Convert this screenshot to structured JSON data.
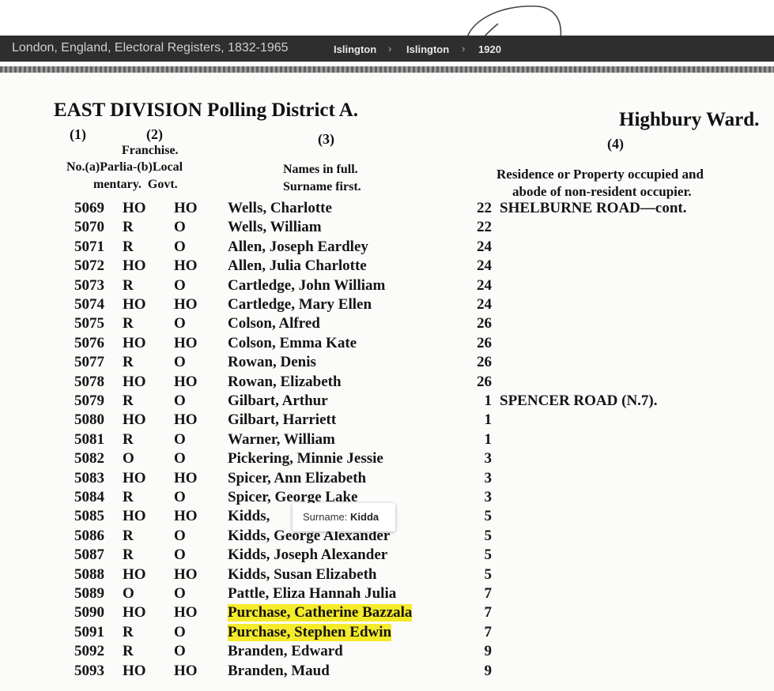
{
  "toolbar": {
    "title": "London, England, Electoral Registers, 1832-1965",
    "breadcrumbs": [
      "Islington",
      "Islington",
      "1920"
    ]
  },
  "document": {
    "heading": "EAST DIVISION Polling District A.",
    "ward": "Highbury Ward.",
    "columns": {
      "col1": "(1)",
      "col2": "(2)",
      "franchise": "Franchise.",
      "sub1": "No.(a)Parlia-(b)Local",
      "sub2": "mentary.  Govt.",
      "col3": "(3)",
      "names1": "Names in full.",
      "names2": "Surname first.",
      "col4": "(4)",
      "res1": "Residence or Property occupied and",
      "res2": "abode of non-resident occupier."
    },
    "rows": [
      [
        "5069",
        "HO",
        "HO",
        "Wells, Charlotte",
        "22",
        "SHELBURNE ROAD—cont."
      ],
      [
        "5070",
        "R",
        "O",
        "Wells, William",
        "22"
      ],
      [
        "5071",
        "R",
        "O",
        "Allen, Joseph Eardley",
        "24"
      ],
      [
        "5072",
        "HO",
        "HO",
        "Allen, Julia Charlotte",
        "24"
      ],
      [
        "5073",
        "R",
        "O",
        "Cartledge, John William",
        "24"
      ],
      [
        "5074",
        "HO",
        "HO",
        "Cartledge, Mary Ellen",
        "24"
      ],
      [
        "5075",
        "R",
        "O",
        "Colson, Alfred",
        "26"
      ],
      [
        "5076",
        "HO",
        "HO",
        "Colson, Emma Kate",
        "26"
      ],
      [
        "5077",
        "R",
        "O",
        "Rowan, Denis",
        "26"
      ],
      [
        "5078",
        "HO",
        "HO",
        "Rowan, Elizabeth",
        "26"
      ],
      [
        "5079",
        "R",
        "O",
        "Gilbart, Arthur",
        "1",
        "SPENCER ROAD (N.7)."
      ],
      [
        "5080",
        "HO",
        "HO",
        "Gilbart, Harriett",
        "1"
      ],
      [
        "5081",
        "R",
        "O",
        "Warner, William",
        "1"
      ],
      [
        "5082",
        "O",
        "O",
        "Pickering, Minnie Jessie",
        "3"
      ],
      [
        "5083",
        "HO",
        "HO",
        "Spicer, Ann Elizabeth",
        "3"
      ],
      [
        "5084",
        "R",
        "O",
        "Spicer, George Lake",
        "3"
      ],
      [
        "5085",
        "HO",
        "HO",
        "Kidds,",
        "5"
      ],
      [
        "5086",
        "R",
        "O",
        "Kidds, George Alexander",
        "5"
      ],
      [
        "5087",
        "R",
        "O",
        "Kidds, Joseph Alexander",
        "5"
      ],
      [
        "5088",
        "HO",
        "HO",
        "Kidds, Susan Elizabeth",
        "5"
      ],
      [
        "5089",
        "O",
        "O",
        "Pattle, Eliza Hannah Julia",
        "7"
      ],
      [
        "5090",
        "HO",
        "HO",
        "Purchase, Catherine Bazzala",
        "7"
      ],
      [
        "5091",
        "R",
        "O",
        "Purchase, Stephen Edwin",
        "7"
      ],
      [
        "5092",
        "R",
        "O",
        "Branden, Edward",
        "9"
      ],
      [
        "5093",
        "HO",
        "HO",
        "Branden, Maud",
        "9"
      ]
    ]
  },
  "tooltip": {
    "label": "Surname:",
    "value": "Kidda"
  }
}
